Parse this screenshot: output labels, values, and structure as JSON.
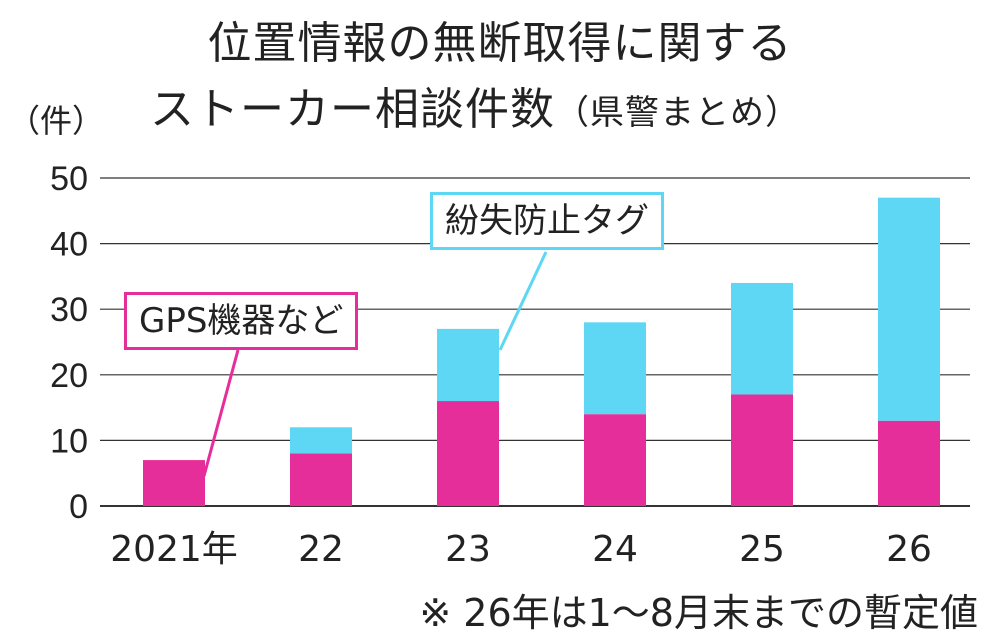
{
  "title_line1": "位置情報の無断取得に関する",
  "title_line2": "ストーカー相談件数",
  "title_sub": "（県警まとめ）",
  "unit_label": "（件）",
  "footnote": "※ 26年は1～8月末までの暫定値",
  "colors": {
    "gps": "#e62e9b",
    "lost_tag": "#5ed7f5"
  },
  "callouts": {
    "gps": "GPS機器など",
    "lost_tag": "紛失防止タグ"
  },
  "chart_data": {
    "type": "bar",
    "stacked": true,
    "categories": [
      "2021年",
      "22",
      "23",
      "24",
      "25",
      "26"
    ],
    "series": [
      {
        "name": "GPS機器など",
        "values": [
          7,
          8,
          16,
          14,
          17,
          13
        ]
      },
      {
        "name": "紛失防止タグ",
        "values": [
          0,
          4,
          11,
          14,
          17,
          34
        ]
      }
    ],
    "y_ticks": [
      0,
      10,
      20,
      30,
      40,
      50
    ],
    "ylim": [
      0,
      50
    ],
    "grid": true
  }
}
